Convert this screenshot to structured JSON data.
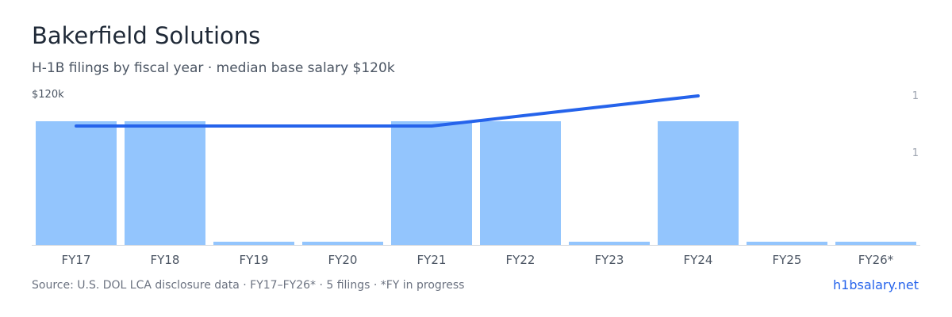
{
  "title": "Bakerfield Solutions",
  "subtitle": "H-1B filings by fiscal year · median base salary $120k",
  "footer": {
    "source": "Source: U.S. DOL LCA disclosure data · FY17–FY26* · 5 filings · *FY in progress",
    "link": "h1bsalary.net"
  },
  "colors": {
    "bar": "#93c5fd",
    "line": "#2563eb",
    "axis": "#d1d5db",
    "tick": "#4b5563",
    "right_tick": "#9ca3af"
  },
  "chart_data": {
    "type": "bar",
    "categories": [
      "FY17",
      "FY18",
      "FY19",
      "FY20",
      "FY21",
      "FY22",
      "FY23",
      "FY24",
      "FY25",
      "FY26*"
    ],
    "series": [
      {
        "type": "bar",
        "axis": "right",
        "values": [
          1,
          1,
          0,
          0,
          1,
          1,
          0,
          1,
          0,
          0
        ]
      },
      {
        "type": "line",
        "axis": "left",
        "values": [
          120,
          null,
          null,
          null,
          120,
          null,
          null,
          135,
          null,
          null
        ]
      }
    ],
    "left_axis": {
      "tick_labels": [
        "$120k"
      ]
    },
    "right_axis": {
      "tick_labels": [
        "1",
        "1"
      ]
    },
    "grid": false
  }
}
